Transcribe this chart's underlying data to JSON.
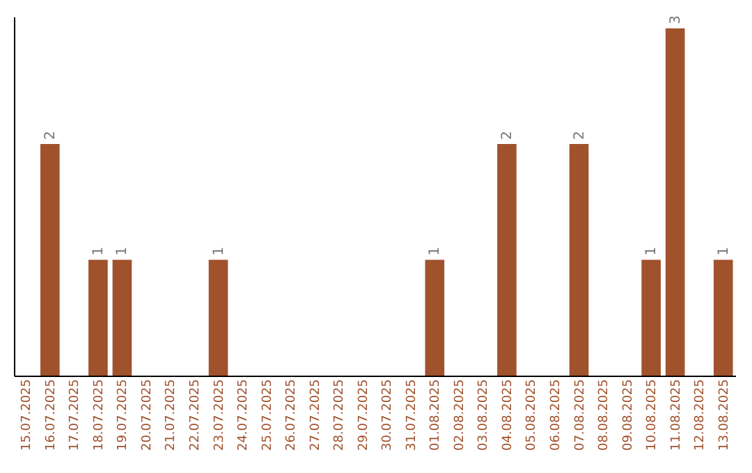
{
  "chart_data": {
    "type": "bar",
    "categories": [
      "15.07.2025",
      "16.07.2025",
      "17.07.2025",
      "18.07.2025",
      "19.07.2025",
      "20.07.2025",
      "21.07.2025",
      "22.07.2025",
      "23.07.2025",
      "24.07.2025",
      "25.07.2025",
      "26.07.2025",
      "27.07.2025",
      "28.07.2025",
      "29.07.2025",
      "30.07.2025",
      "31.07.2025",
      "01.08.2025",
      "02.08.2025",
      "03.08.2025",
      "04.08.2025",
      "05.08.2025",
      "06.08.2025",
      "07.08.2025",
      "08.08.2025",
      "09.08.2025",
      "10.08.2025",
      "11.08.2025",
      "12.08.2025",
      "13.08.2025"
    ],
    "values": [
      0,
      2,
      0,
      1,
      1,
      0,
      0,
      0,
      1,
      0,
      0,
      0,
      0,
      0,
      0,
      0,
      0,
      1,
      0,
      0,
      2,
      0,
      0,
      2,
      0,
      0,
      1,
      3,
      0,
      1
    ],
    "value_labels": [
      null,
      "2",
      null,
      "1",
      "1",
      null,
      null,
      null,
      "1",
      null,
      null,
      null,
      null,
      null,
      null,
      null,
      null,
      "1",
      null,
      null,
      "2",
      null,
      null,
      "2",
      null,
      null,
      "1",
      "3",
      null,
      "1"
    ],
    "color": "#a0522d",
    "ylim": [
      0,
      3.1
    ],
    "tick_labels": "x",
    "grid": false
  }
}
